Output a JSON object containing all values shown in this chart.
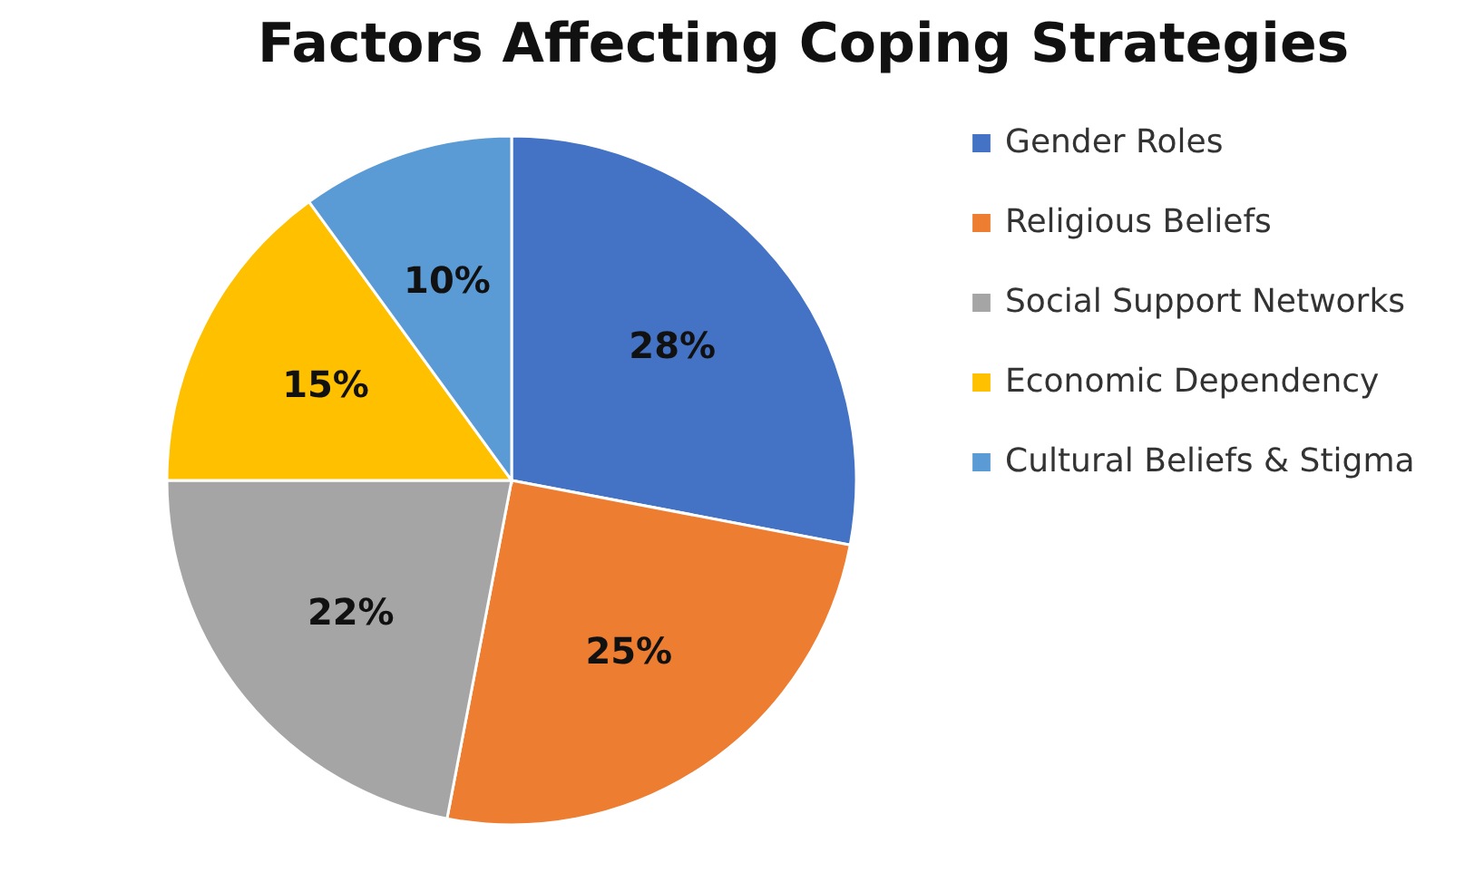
{
  "chart_data": {
    "type": "pie",
    "title": "Factors Affecting Coping Strategies",
    "categories": [
      "Gender Roles",
      "Religious Beliefs",
      "Social Support Networks",
      "Economic Dependency",
      "Cultural Beliefs & Stigma"
    ],
    "values": [
      28,
      25,
      22,
      15,
      10
    ],
    "colors": [
      "#4472c4",
      "#ed7d31",
      "#a5a5a5",
      "#ffc000",
      "#5b9bd5"
    ],
    "value_labels": [
      "28%",
      "25%",
      "22%",
      "15%",
      "10%"
    ],
    "legend": "right"
  }
}
